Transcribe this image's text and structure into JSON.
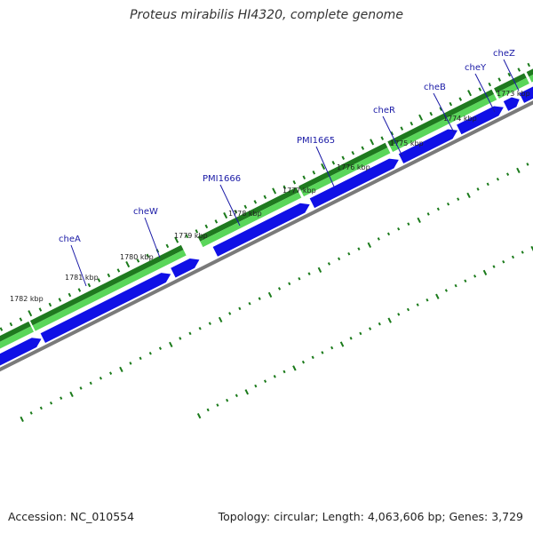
{
  "title": "Proteus mirabilis HI4320, complete genome",
  "accession": "Accession: NC_010554",
  "summary": "Topology: circular; Length: 4,063,606 bp; Genes: 3,729",
  "colors": {
    "gc_dark": "#1f7a1f",
    "gc_light": "#5ad65a",
    "cds": "#1010e6",
    "backbone": "#7a7a7a",
    "tick": "#1a7a1a",
    "gene_label": "#1a1aa6"
  },
  "ticks": [
    {
      "label": "1782 kbp"
    },
    {
      "label": "1781 kbp"
    },
    {
      "label": "1780 kbp"
    },
    {
      "label": "1779 kbp"
    },
    {
      "label": "1778 kbp"
    },
    {
      "label": "1777 kbp"
    },
    {
      "label": "1776 kbp"
    },
    {
      "label": "1775 kbp"
    },
    {
      "label": "1774 kbp"
    },
    {
      "label": "1773 kbp"
    }
  ],
  "genes": [
    {
      "name": "cheA"
    },
    {
      "name": "cheW"
    },
    {
      "name": "PMI1666"
    },
    {
      "name": "PMI1665"
    },
    {
      "name": "cheR"
    },
    {
      "name": "cheB"
    },
    {
      "name": "cheY"
    },
    {
      "name": "cheZ"
    }
  ]
}
